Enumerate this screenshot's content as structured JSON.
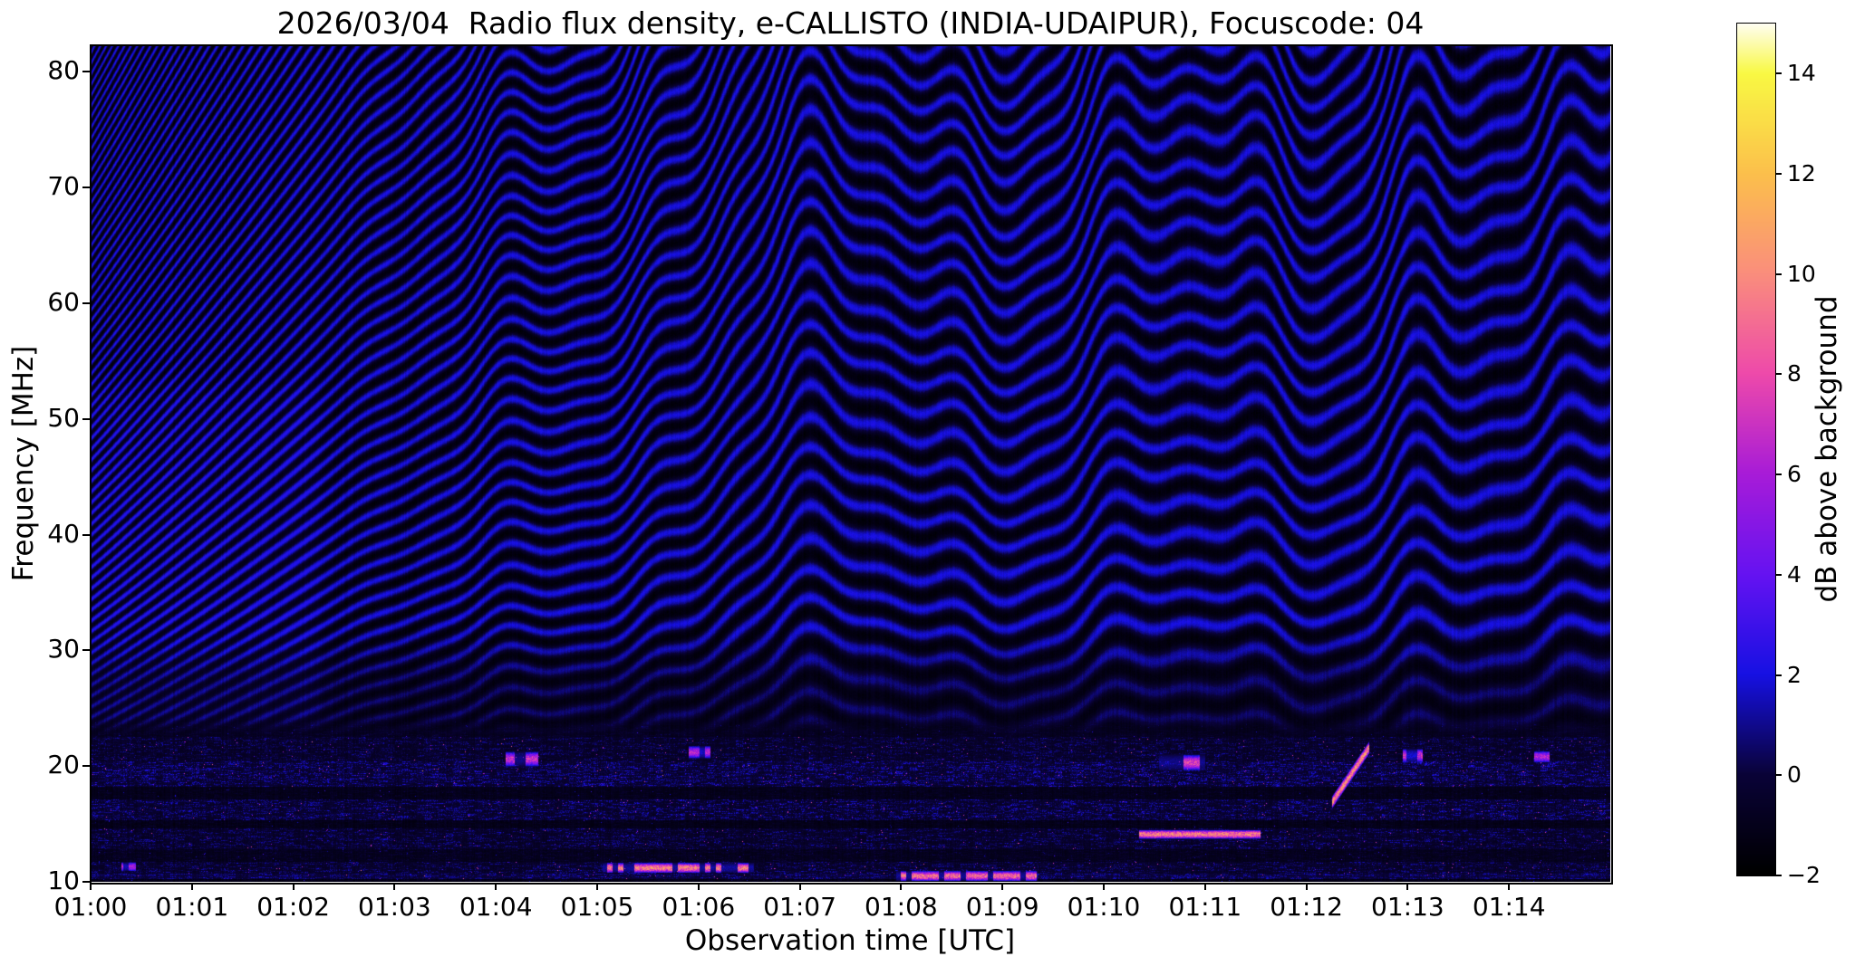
{
  "chart_data": {
    "type": "heatmap",
    "subtype": "radio-spectrogram",
    "title": "2026/03/04  Radio flux density, e-CALLISTO (INDIA-UDAIPUR), Focuscode: 04",
    "xlabel": "Observation time [UTC]",
    "ylabel": "Frequency [MHz]",
    "grid": false,
    "x_axis": {
      "range_minutes": [
        0,
        15
      ],
      "start_time": "01:00",
      "end_time": "01:15",
      "ticks": [
        {
          "minute": 0,
          "label": "01:00"
        },
        {
          "minute": 1,
          "label": "01:01"
        },
        {
          "minute": 2,
          "label": "01:02"
        },
        {
          "minute": 3,
          "label": "01:03"
        },
        {
          "minute": 4,
          "label": "01:04"
        },
        {
          "minute": 5,
          "label": "01:05"
        },
        {
          "minute": 6,
          "label": "01:06"
        },
        {
          "minute": 7,
          "label": "01:07"
        },
        {
          "minute": 8,
          "label": "01:08"
        },
        {
          "minute": 9,
          "label": "01:09"
        },
        {
          "minute": 10,
          "label": "01:10"
        },
        {
          "minute": 11,
          "label": "01:11"
        },
        {
          "minute": 12,
          "label": "01:12"
        },
        {
          "minute": 13,
          "label": "01:13"
        },
        {
          "minute": 14,
          "label": "01:14"
        }
      ]
    },
    "y_axis": {
      "range_mhz": [
        10,
        82.3
      ],
      "ticks": [
        80,
        70,
        60,
        50,
        40,
        30,
        20,
        10
      ]
    },
    "colorbar": {
      "label": "dB above background",
      "range": [
        -2,
        15
      ],
      "ticks": [
        14,
        12,
        10,
        8,
        6,
        4,
        2,
        0,
        -2
      ],
      "colormap_stops": [
        {
          "v": -2,
          "c": "#000000"
        },
        {
          "v": 0,
          "c": "#0a0338"
        },
        {
          "v": 2,
          "c": "#1711e3"
        },
        {
          "v": 4,
          "c": "#6613f2"
        },
        {
          "v": 6,
          "c": "#a81cd8"
        },
        {
          "v": 8,
          "c": "#ee4aab"
        },
        {
          "v": 10,
          "c": "#fa8e7d"
        },
        {
          "v": 12,
          "c": "#fcc04c"
        },
        {
          "v": 14,
          "c": "#f9f943"
        },
        {
          "v": 15,
          "c": "#fffef2"
        }
      ]
    },
    "pattern": {
      "description": "Blue/black interference fringes: dense near-vertical stripes 01:00-01:03 chirping into broad undulating quasi-horizontal bands (~2.5-3 MHz spacing) with a trough near 01:05, a crest near 01:06.8, gentle waves to 01:13, then steep dense fringes to 01:15. Brighter rectangular block 01:00-01:02.3 below ~53 MHz. Noisy RFI bands below ~24 MHz with bright pink/orange bursts.",
      "fringes": {
        "T0": 0.36,
        "A": 0.72,
        "tau": 3.3,
        "phase0": 0.8,
        "end_drop": {
          "t_start": 13.1,
          "rate": 0.021
        },
        "bumps": [
          {
            "t": 5.0,
            "w": 0.85,
            "a": 0.055
          },
          {
            "t": 6.75,
            "w": 0.95,
            "a": -0.048
          },
          {
            "t": 8.6,
            "w": 0.8,
            "a": 0.012
          },
          {
            "t": 13.0,
            "w": 0.55,
            "a": -0.018
          }
        ],
        "osc": [
          {
            "p": 3.0,
            "a": 0.018,
            "ph": 1.2
          },
          {
            "p": 1.5,
            "a": 0.011,
            "ph": 0.4
          },
          {
            "p": 0.75,
            "a": 0.0055,
            "ph": 2.0
          }
        ],
        "osc_ramp": [
          2.0,
          4.5
        ],
        "contrast_fade": {
          "f_lo": 26,
          "f_hi": 33,
          "min_amp": 0.55
        }
      },
      "left_block": {
        "t_end": 2.3,
        "f_lo": 21.5,
        "f_hi": 54.5,
        "boost": 0.38,
        "overall": 0.1
      },
      "noise_region_top_mhz": 24.6,
      "noise_bands": [
        {
          "f0": 22.5,
          "f1": 24.6,
          "amp": 0.45,
          "base": 0.0
        },
        {
          "f0": 20.4,
          "f1": 22.5,
          "amp": 0.8,
          "base": 0.08
        },
        {
          "f0": 18.2,
          "f1": 20.4,
          "amp": 1.15,
          "base": 0.12
        },
        {
          "f0": 17.1,
          "f1": 18.2,
          "amp": 0.4,
          "base": -0.15
        },
        {
          "f0": 15.3,
          "f1": 17.1,
          "amp": 1.05,
          "base": 0.08
        },
        {
          "f0": 14.6,
          "f1": 15.3,
          "amp": 0.35,
          "base": -0.18
        },
        {
          "f0": 12.8,
          "f1": 14.6,
          "amp": 0.9,
          "base": 0.04
        },
        {
          "f0": 11.7,
          "f1": 12.8,
          "amp": 0.5,
          "base": -0.1
        },
        {
          "f0": 10.7,
          "f1": 11.7,
          "amp": 0.85,
          "base": 0.12
        },
        {
          "f0": 10.25,
          "f1": 10.7,
          "amp": 0.9,
          "base": 0.5
        },
        {
          "f0": 9.8,
          "f1": 10.25,
          "amp": 0.4,
          "base": -0.3
        }
      ],
      "features": [
        {
          "style": "dashes",
          "t0": 5.05,
          "t1": 6.55,
          "fa": 11.2,
          "df": 0.45,
          "v": 9.5
        },
        {
          "style": "dashes",
          "t0": 7.95,
          "t1": 9.35,
          "fa": 10.5,
          "df": 0.45,
          "v": 9.0
        },
        {
          "style": "line",
          "t0": 10.35,
          "t1": 11.55,
          "fa": 14.1,
          "df": 0.4,
          "v": 9.5
        },
        {
          "style": "line",
          "t0": 12.25,
          "t1": 12.62,
          "fa": 16.8,
          "fb": 21.6,
          "df": 0.55,
          "v": 10.0
        },
        {
          "style": "dashes",
          "t0": 4.1,
          "t1": 4.42,
          "fa": 20.6,
          "df": 0.65,
          "v": 7.0
        },
        {
          "style": "dashes",
          "t0": 10.55,
          "t1": 11.0,
          "fa": 20.3,
          "df": 0.7,
          "v": 7.5
        },
        {
          "style": "dots",
          "t0": 12.95,
          "t1": 13.15,
          "fa": 20.9,
          "df": 0.6,
          "v": 7.0
        },
        {
          "style": "dots",
          "t0": 5.9,
          "t1": 6.12,
          "fa": 21.2,
          "df": 0.55,
          "v": 6.5
        },
        {
          "style": "dots",
          "t0": 0.3,
          "t1": 0.45,
          "fa": 11.3,
          "df": 0.4,
          "v": 6.0
        },
        {
          "style": "dots",
          "t0": 14.25,
          "t1": 14.4,
          "fa": 20.8,
          "df": 0.5,
          "v": 6.5
        }
      ]
    }
  }
}
